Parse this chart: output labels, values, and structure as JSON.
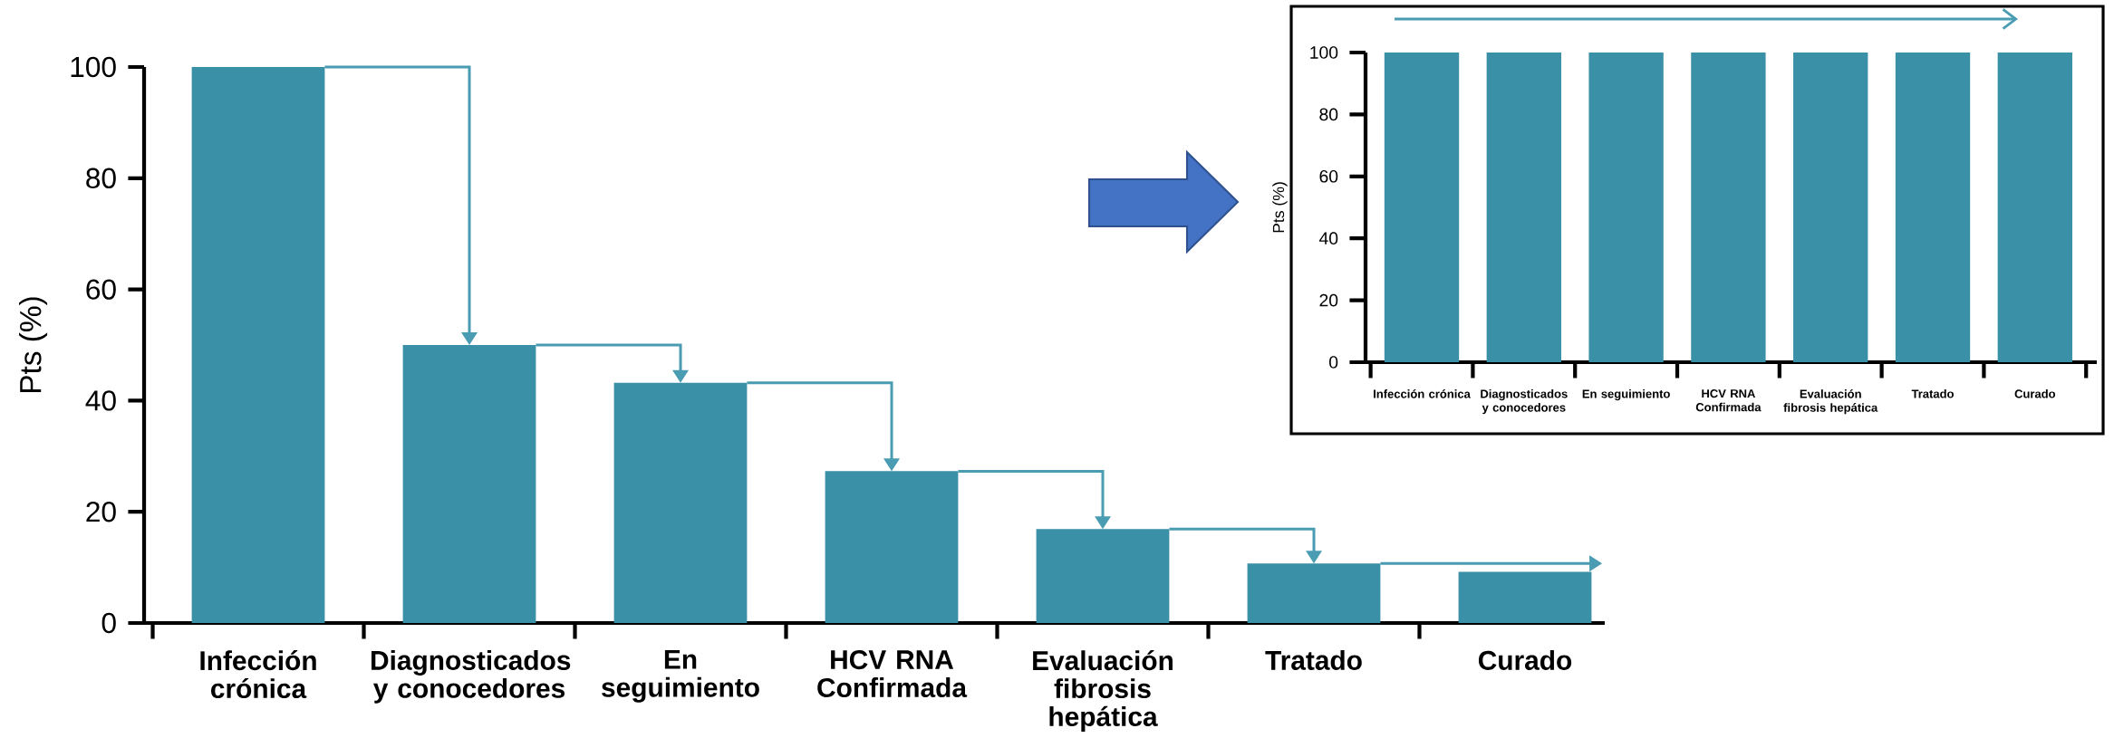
{
  "chart_data": [
    {
      "type": "bar",
      "ylabel": "Pts (%)",
      "categories": [
        "Infección crónica",
        "Diagnosticados y conocedores",
        "En seguimiento",
        "HCV RNA Confirmada",
        "Evaluación fibrosis hepática",
        "Tratado",
        "Curado"
      ],
      "values": [
        100,
        50,
        43.2,
        27.3,
        16.9,
        10.7,
        9.2
      ],
      "color": "#3a90a6",
      "ylim": [
        0,
        100
      ],
      "yticks": [
        0,
        20,
        40,
        60,
        80,
        100
      ]
    },
    {
      "type": "bar",
      "ylabel": "Pts (%)",
      "categories": [
        "Infección crónica",
        "Diagnosticados y conocedores",
        "En seguimiento",
        "HCV RNA Confirmada",
        "Evaluación fibrosis hepática",
        "Tratado",
        "Curado"
      ],
      "values": [
        100,
        100,
        100,
        100,
        100,
        100,
        100
      ],
      "color": "#3a90a6",
      "ylim": [
        0,
        100
      ],
      "yticks": [
        0,
        20,
        40,
        60,
        80,
        100
      ]
    }
  ]
}
